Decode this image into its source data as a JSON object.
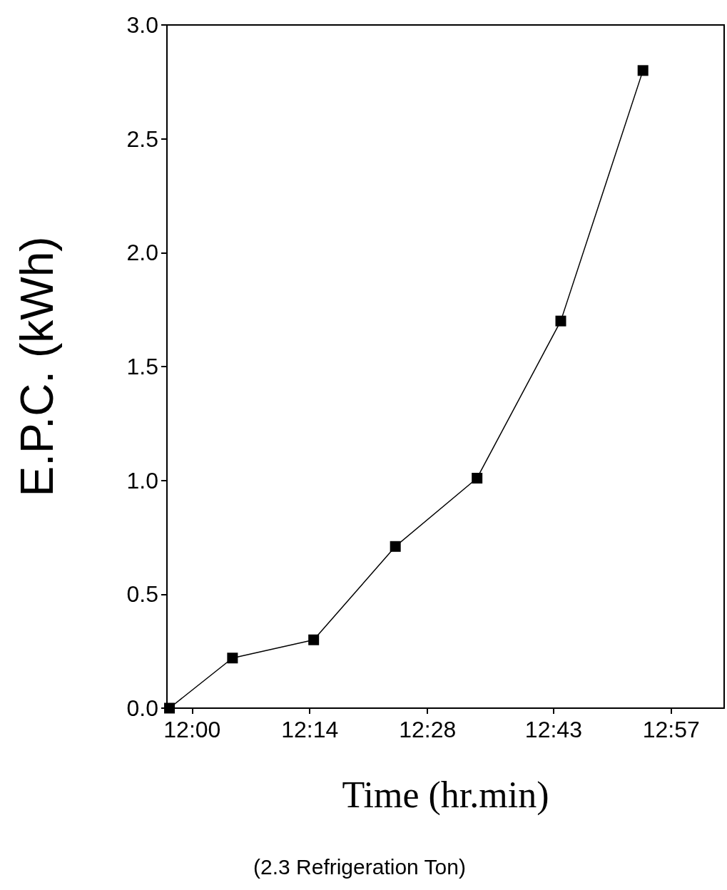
{
  "chart_data": {
    "type": "line",
    "xlabel": "Time (hr.min)",
    "ylabel": "E.P.C. (kWh)",
    "annotations": [
      "(2.3 Refrigeration Ton)"
    ],
    "x": [
      11.955,
      12.08,
      12.241,
      12.403,
      12.565,
      12.731,
      12.894
    ],
    "series": [
      {
        "color": "#000000",
        "values": [
          0,
          0.22,
          0.3,
          0.71,
          1.01,
          1.7,
          2.8
        ]
      }
    ],
    "xlim": [
      11.95,
      13.055
    ],
    "xticks": [
      {
        "value": 12,
        "label": "12:00"
      },
      {
        "value": 12.2333,
        "label": "12:14"
      },
      {
        "value": 12.4667,
        "label": "12:28"
      },
      {
        "value": 12.7167,
        "label": "12:43"
      },
      {
        "value": 12.95,
        "label": "12:57"
      }
    ],
    "ylim": [
      0,
      3
    ],
    "yticks": [
      {
        "value": 0,
        "label": "0.0"
      },
      {
        "value": 0.5,
        "label": "0.5"
      },
      {
        "value": 1,
        "label": "1.0"
      },
      {
        "value": 1.5,
        "label": "1.5"
      },
      {
        "value": 2,
        "label": "2.0"
      },
      {
        "value": 2.5,
        "label": "2.5"
      },
      {
        "value": 3,
        "label": "3.0"
      }
    ],
    "grid": false,
    "marker": "square",
    "line_style": "solid"
  }
}
